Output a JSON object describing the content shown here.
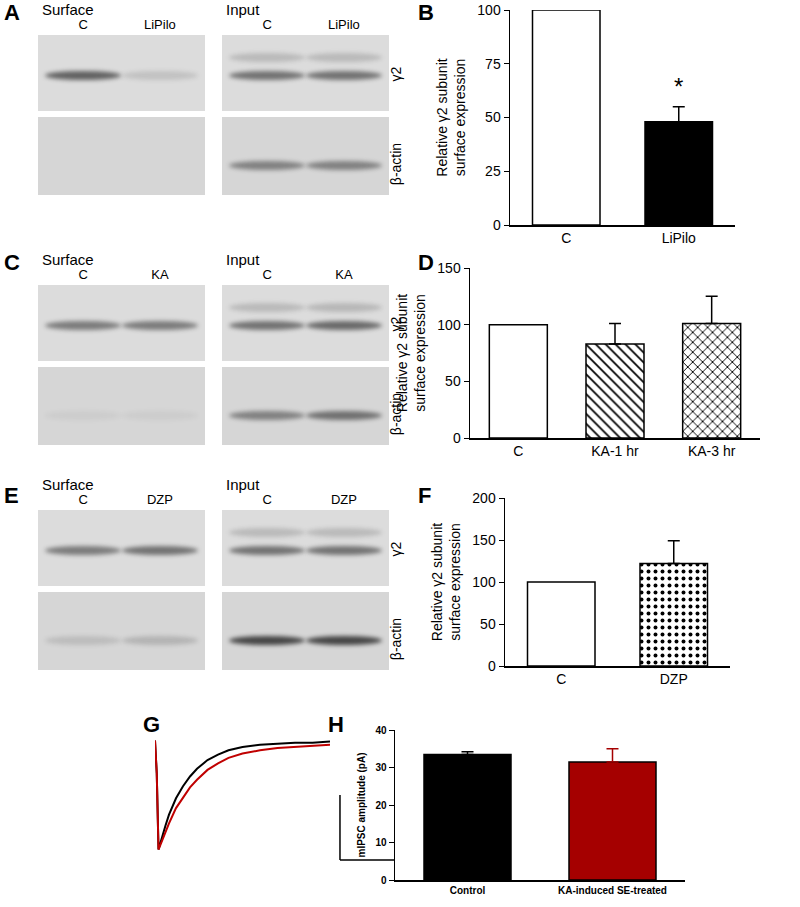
{
  "blots": [
    {
      "label": "A",
      "sections": [
        {
          "title": "Surface",
          "lanes": [
            "C",
            "LiPilo"
          ]
        },
        {
          "title": "Input",
          "lanes": [
            "C",
            "LiPilo"
          ]
        }
      ],
      "rows": [
        "γ2",
        "β-actin"
      ]
    },
    {
      "label": "C",
      "sections": [
        {
          "title": "Surface",
          "lanes": [
            "C",
            "KA"
          ]
        },
        {
          "title": "Input",
          "lanes": [
            "C",
            "KA"
          ]
        }
      ],
      "rows": [
        "γ2",
        "β-actin"
      ]
    },
    {
      "label": "E",
      "sections": [
        {
          "title": "Surface",
          "lanes": [
            "C",
            "DZP"
          ]
        },
        {
          "title": "Input",
          "lanes": [
            "C",
            "DZP"
          ]
        }
      ],
      "rows": [
        "γ2",
        "β-actin"
      ]
    }
  ],
  "chart_labels": [
    "B",
    "D",
    "F",
    "G",
    "H"
  ],
  "chart_data": [
    {
      "type": "bar",
      "categories": [
        "C",
        "LiPilo"
      ],
      "values": [
        100,
        48
      ],
      "errors": [
        null,
        7
      ],
      "colors": [
        "#ffffff",
        "#000000"
      ],
      "ylabel": [
        "Relative γ2 subunit",
        "surface expression"
      ],
      "ylim": [
        0,
        100
      ],
      "yticks": [
        0,
        25,
        50,
        75,
        100
      ],
      "grid": false,
      "annotations": [
        {
          "category": "LiPilo",
          "y": 57,
          "text": "*"
        }
      ]
    },
    {
      "type": "bar",
      "categories": [
        "C",
        "KA-1 hr",
        "KA-3 hr"
      ],
      "values": [
        100,
        83,
        101
      ],
      "errors": [
        null,
        18,
        24
      ],
      "colors": [
        "#ffffff",
        "#ffffff",
        "#ffffff"
      ],
      "ylabel": [
        "Relative γ2 subunit",
        "surface expression"
      ],
      "ylim": [
        0,
        150
      ],
      "yticks": [
        0,
        50,
        100,
        150
      ],
      "grid": false
    },
    {
      "type": "bar",
      "categories": [
        "C",
        "DZP"
      ],
      "values": [
        100,
        122
      ],
      "errors": [
        null,
        27
      ],
      "colors": [
        "#ffffff",
        "#ffffff"
      ],
      "ylabel": [
        "Relative γ2 subunit",
        "surface expression"
      ],
      "ylim": [
        0,
        200
      ],
      "yticks": [
        0,
        50,
        100,
        150,
        200
      ],
      "grid": false
    },
    {
      "type": "line",
      "tick_labels": false,
      "grid": false,
      "x": [
        0,
        0.5,
        1,
        2,
        3,
        4,
        6,
        8,
        10,
        12,
        15,
        18,
        21,
        25,
        30,
        35,
        40,
        45,
        50
      ],
      "xlim": [
        0,
        50
      ],
      "ylim": [
        -1.05,
        0.05
      ],
      "series": [
        {
          "color": "#000000",
          "values": [
            0,
            -0.3,
            -1,
            -0.88,
            -0.78,
            -0.68,
            -0.53,
            -0.42,
            -0.33,
            -0.26,
            -0.18,
            -0.13,
            -0.09,
            -0.06,
            -0.04,
            -0.03,
            -0.02,
            -0.02,
            -0.01
          ]
        },
        {
          "color": "#c00000",
          "values": [
            0,
            -0.3,
            -1,
            -0.92,
            -0.83,
            -0.76,
            -0.62,
            -0.52,
            -0.43,
            -0.36,
            -0.27,
            -0.21,
            -0.16,
            -0.12,
            -0.09,
            -0.07,
            -0.06,
            -0.05,
            -0.04
          ]
        }
      ]
    },
    {
      "type": "bar",
      "categories": [
        "Control",
        "KA-induced SE-treated"
      ],
      "values": [
        33.5,
        31.5
      ],
      "errors": [
        0.7,
        3.5
      ],
      "colors": [
        "#000000",
        "#a50000"
      ],
      "ylabel": "mIPSC amplitude (pA)",
      "ylim": [
        0,
        40
      ],
      "yticks": [
        0,
        10,
        20,
        30,
        40
      ],
      "grid": false
    }
  ]
}
